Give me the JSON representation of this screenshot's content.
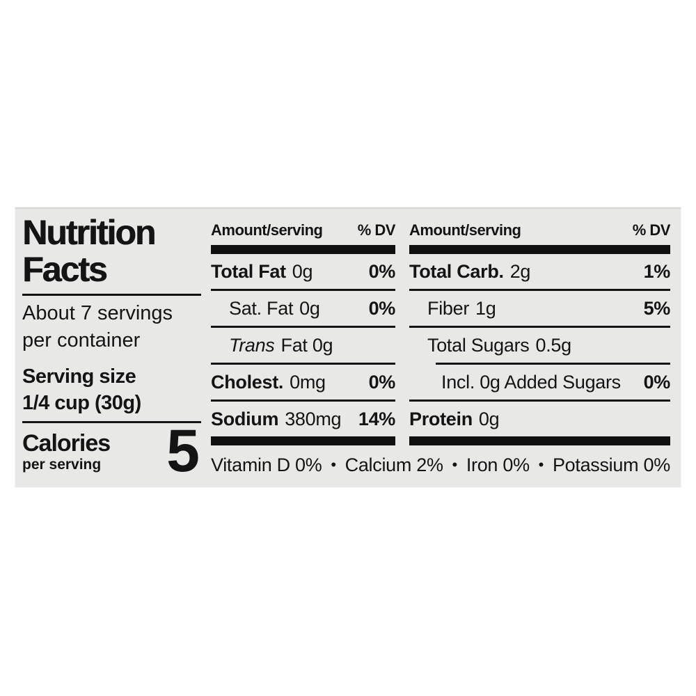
{
  "label": {
    "title_line1": "Nutrition",
    "title_line2": "Facts",
    "servings_line1": "About 7 servings",
    "servings_line2": "per container",
    "serving_size_label": "Serving size",
    "serving_size_value": "1/4 cup (30g)",
    "calories_label": "Calories",
    "calories_sublabel": "per serving",
    "calories_value": "5"
  },
  "panel_mid": {
    "header_amount": "Amount/serving",
    "header_dv": "% DV",
    "rows": [
      {
        "name": "Total Fat",
        "amount": "0g",
        "dv": "0%"
      },
      {
        "name": "Sat. Fat",
        "amount": "0g",
        "dv": "0%"
      },
      {
        "italic": "Trans",
        "rest": "Fat 0g",
        "dv": ""
      },
      {
        "name": "Cholest.",
        "amount": "0mg",
        "dv": "0%"
      },
      {
        "name": "Sodium",
        "amount": "380mg",
        "dv": "14%"
      }
    ]
  },
  "panel_right": {
    "header_amount": "Amount/serving",
    "header_dv": "% DV",
    "rows": [
      {
        "name": "Total Carb.",
        "amount": "2g",
        "dv": "1%"
      },
      {
        "name": "Fiber",
        "amount": "1g",
        "dv": "5%"
      },
      {
        "name": "Total Sugars",
        "amount": "0.5g",
        "dv": ""
      },
      {
        "name": "Incl. 0g Added Sugars",
        "amount": "",
        "dv": "0%"
      },
      {
        "name": "Protein",
        "amount": "0g",
        "dv": ""
      }
    ]
  },
  "micronutrients": {
    "parts": [
      "Vitamin D 0%",
      "•",
      "Calcium 2%",
      "•",
      "Iron 0%",
      "•",
      "Potassium 0%"
    ]
  },
  "colors": {
    "label_bg": "#e8e8e6",
    "bar": "#101010",
    "text": "#141414",
    "page_bg": "#ffffff"
  }
}
